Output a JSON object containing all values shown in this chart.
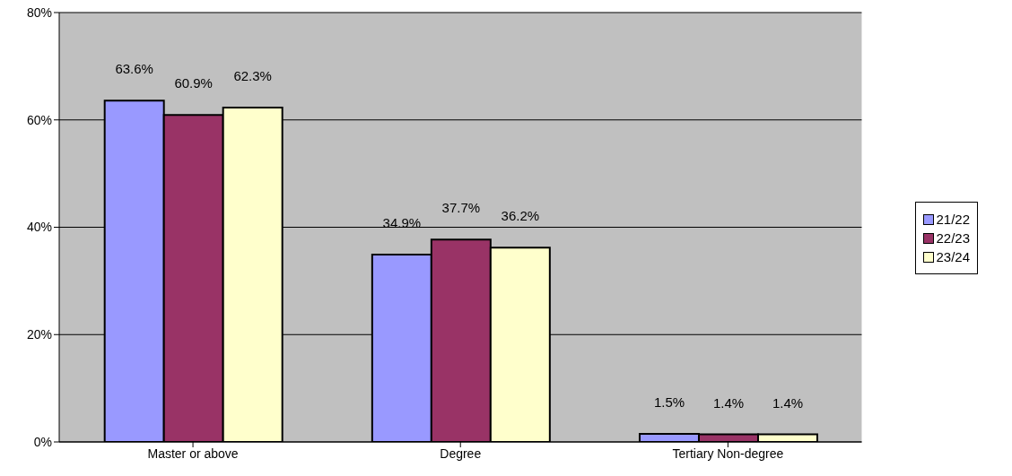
{
  "chart_data": {
    "type": "bar",
    "categories": [
      "Master or above",
      "Degree",
      "Tertiary Non-degree"
    ],
    "series": [
      {
        "name": "21/22",
        "color": "#9999ff",
        "values": [
          63.6,
          34.9,
          1.5
        ],
        "value_labels": [
          "63.6%",
          "34.9%",
          "1.5%"
        ]
      },
      {
        "name": "22/23",
        "color": "#993366",
        "values": [
          60.9,
          37.7,
          1.4
        ],
        "value_labels": [
          "60.9%",
          "37.7%",
          "1.4%"
        ]
      },
      {
        "name": "23/24",
        "color": "#ffffcc",
        "values": [
          62.3,
          36.2,
          1.4
        ],
        "value_labels": [
          "62.3%",
          "36.2%",
          "1.4%"
        ]
      }
    ],
    "ylim": [
      0,
      80
    ],
    "yticks": [
      {
        "value": 0,
        "label": "0%"
      },
      {
        "value": 20,
        "label": "20%"
      },
      {
        "value": 40,
        "label": "40%"
      },
      {
        "value": 60,
        "label": "60%"
      },
      {
        "value": 80,
        "label": "80%"
      }
    ],
    "grid": "y",
    "legend": "right"
  }
}
